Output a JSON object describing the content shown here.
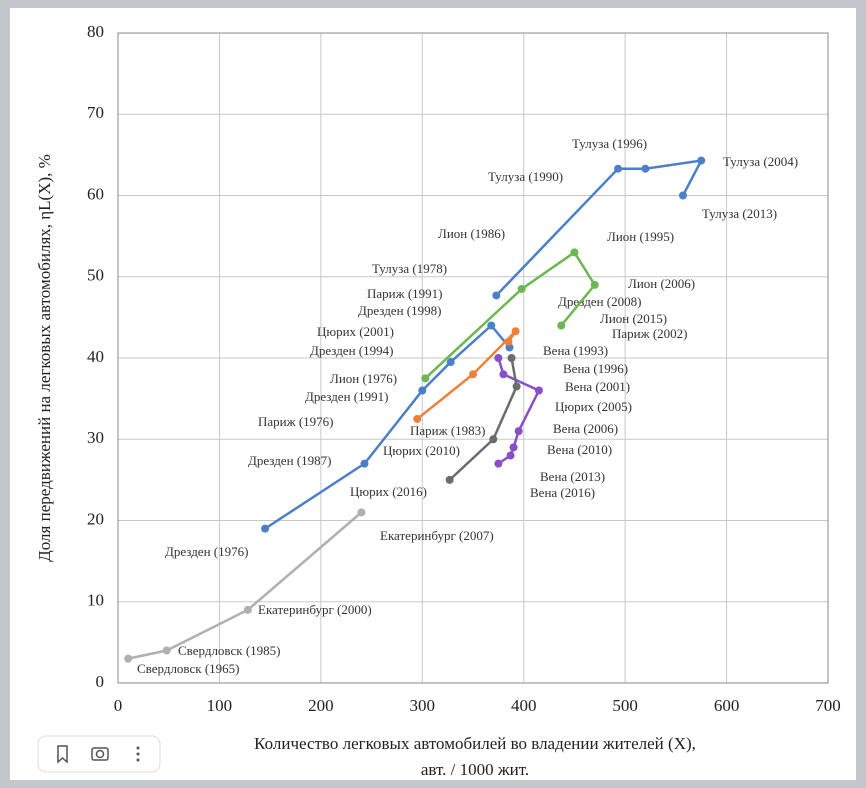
{
  "chart_data": {
    "type": "line",
    "xlabel": [
      "Количество легковых автомобилей во владении жителей (X),",
      "авт. / 1000 жит."
    ],
    "ylabel": "Доля передвижений на легковых автомобилях, ηL(X), %",
    "xlim": [
      0,
      700
    ],
    "ylim": [
      0,
      80
    ],
    "xticks": [
      0,
      100,
      200,
      300,
      400,
      500,
      600,
      700
    ],
    "yticks": [
      0,
      10,
      20,
      30,
      40,
      50,
      60,
      70,
      80
    ],
    "grid": true,
    "series": [
      {
        "color": "#b0b0b0",
        "x": [
          10,
          48,
          128,
          240
        ],
        "values": [
          3,
          4,
          9,
          21
        ],
        "labels": [
          "Свердловск (1965)",
          "Свердловск (1985)",
          "Екатеринбург (2000)",
          "Екатеринбург (2007)"
        ]
      },
      {
        "color": "#4a7fc9",
        "x": [
          145,
          243,
          300,
          328,
          368,
          386
        ],
        "values": [
          19,
          27,
          36,
          39.5,
          44,
          41.3
        ],
        "labels": [
          "Дрезден (1976)",
          "Дрезден (1987)",
          "Дрезден (1991)",
          "Дрезден (1994)",
          "Дрезден (1998)",
          "Дрезден (2008)"
        ]
      },
      {
        "color": "#4a7fc9",
        "x": [
          373,
          493,
          520,
          575,
          557
        ],
        "values": [
          47.7,
          63.3,
          63.3,
          64.3,
          60
        ],
        "labels": [
          "Тулуза (1978)",
          "Тулуза (1990)",
          "Тулуза (1996)",
          "Тулуза (2004)",
          "Тулуза (2013)"
        ]
      },
      {
        "color": "#6ab84f",
        "x": [
          303,
          398,
          450,
          470,
          437
        ],
        "values": [
          37.5,
          48.5,
          53,
          49,
          44
        ],
        "labels": [
          "Лион (1976)",
          "Лион (1986)",
          "Лион (1995)",
          "Лион (2006)",
          "Лион (2015)"
        ]
      },
      {
        "color": "#f07f3c",
        "x": [
          295,
          350,
          392,
          385
        ],
        "values": [
          32.5,
          38,
          43.3,
          42
        ],
        "labels": [
          "Париж (1976)",
          "Париж (1983)",
          "Париж (1991)",
          "Париж (2002)"
        ]
      },
      {
        "color": "#8a4fc7",
        "x": [
          375,
          380,
          415,
          395,
          390,
          387,
          375
        ],
        "values": [
          40,
          38,
          36,
          31,
          29,
          28,
          27
        ],
        "labels": [
          "Вена (1993)",
          "Вена (1996)",
          "Вена (2001)",
          "Вена (2006)",
          "Вена (2010)",
          "Вена (2013)",
          "Вена (2016)"
        ]
      },
      {
        "color": "#6b6b6b",
        "x": [
          388,
          393,
          370,
          327
        ],
        "values": [
          40,
          36.5,
          30,
          25
        ],
        "labels": [
          "Цюрих (2001)",
          "Цюрих (2005)",
          "Цюрих (2010)",
          "Цюрих (2016)"
        ]
      }
    ]
  }
}
